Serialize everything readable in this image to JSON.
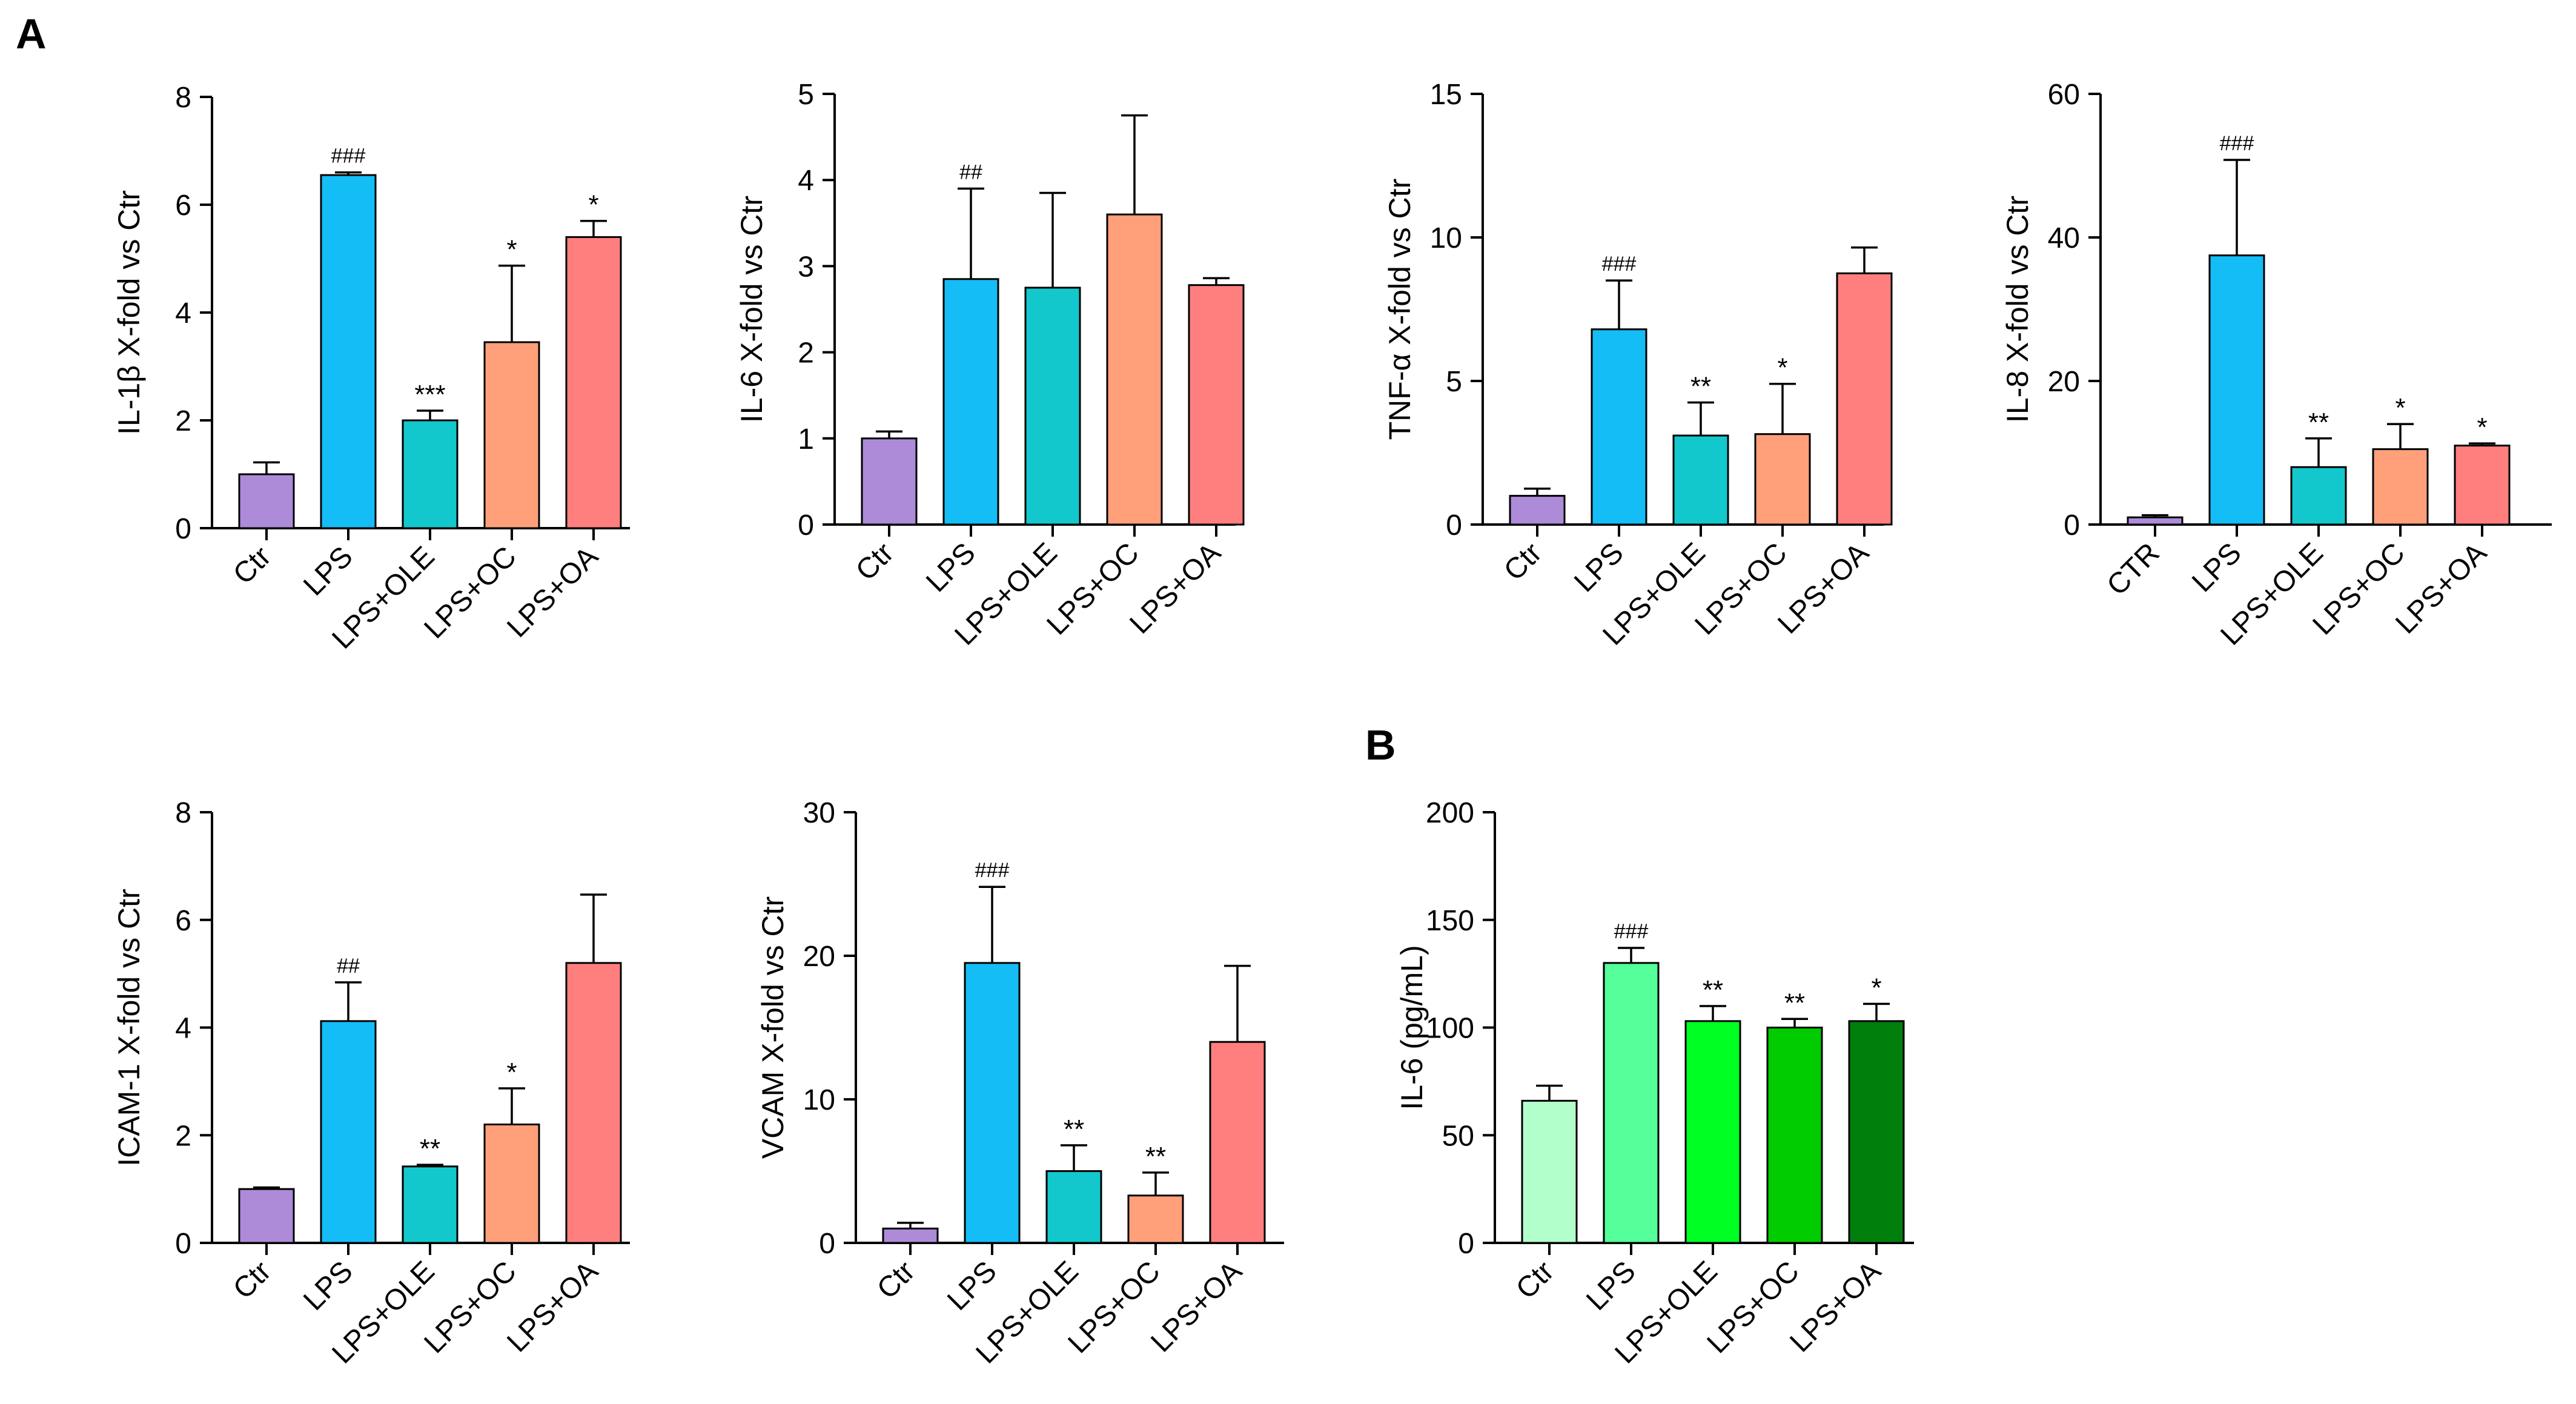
{
  "figure": {
    "panel_a_label": "A",
    "panel_b_label": "B"
  },
  "chart_data": [
    {
      "id": "il1b",
      "type": "bar",
      "ylabel": "IL-1β X-fold vs Ctr",
      "ylim": [
        0,
        8
      ],
      "yticks": [
        0,
        2,
        4,
        6,
        8
      ],
      "categories": [
        "Ctr",
        "LPS",
        "LPS+OLE",
        "LPS+OC",
        "LPS+OA"
      ],
      "values": [
        1.0,
        6.55,
        2.0,
        3.45,
        5.4
      ],
      "errors": [
        0.22,
        0.05,
        0.18,
        1.42,
        0.3
      ],
      "annotations": [
        "",
        "###",
        "***",
        "*",
        "*"
      ],
      "colors": [
        "#ad8bd9",
        "#14bdf5",
        "#12c8cc",
        "#ffa07a",
        "#ff7f7f"
      ]
    },
    {
      "id": "il6",
      "type": "bar",
      "ylabel": "IL-6 X-fold vs Ctr",
      "ylim": [
        0,
        5
      ],
      "yticks": [
        0,
        1,
        2,
        3,
        4,
        5
      ],
      "categories": [
        "Ctr",
        "LPS",
        "LPS+OLE",
        "LPS+OC",
        "LPS+OA"
      ],
      "values": [
        1.0,
        2.85,
        2.75,
        3.6,
        2.78
      ],
      "errors": [
        0.08,
        1.05,
        1.1,
        1.15,
        0.08
      ],
      "annotations": [
        "",
        "##",
        "",
        "",
        ""
      ],
      "colors": [
        "#ad8bd9",
        "#14bdf5",
        "#12c8cc",
        "#ffa07a",
        "#ff7f7f"
      ]
    },
    {
      "id": "tnfa",
      "type": "bar",
      "ylabel": "TNF-α X-fold vs Ctr",
      "ylim": [
        0,
        15
      ],
      "yticks": [
        0,
        5,
        10,
        15
      ],
      "categories": [
        "Ctr",
        "LPS",
        "LPS+OLE",
        "LPS+OC",
        "LPS+OA"
      ],
      "values": [
        1.0,
        6.8,
        3.1,
        3.15,
        8.75
      ],
      "errors": [
        0.25,
        1.7,
        1.15,
        1.75,
        0.9
      ],
      "annotations": [
        "",
        "###",
        "**",
        "*",
        ""
      ],
      "colors": [
        "#ad8bd9",
        "#14bdf5",
        "#12c8cc",
        "#ffa07a",
        "#ff7f7f"
      ]
    },
    {
      "id": "il8",
      "type": "bar",
      "ylabel": "IL-8 X-fold vs Ctr",
      "ylim": [
        0,
        60
      ],
      "yticks": [
        0,
        20,
        40,
        60
      ],
      "categories": [
        "CTR",
        "LPS",
        "LPS+OLE",
        "LPS+OC",
        "LPS+OA"
      ],
      "values": [
        1.0,
        37.5,
        8.0,
        10.5,
        11.0
      ],
      "errors": [
        0.3,
        13.3,
        4.0,
        3.5,
        0.3
      ],
      "annotations": [
        "",
        "###",
        "**",
        "*",
        "*"
      ],
      "colors": [
        "#ad8bd9",
        "#14bdf5",
        "#12c8cc",
        "#ffa07a",
        "#ff7f7f"
      ]
    },
    {
      "id": "icam1",
      "type": "bar",
      "ylabel": "ICAM-1 X-fold vs Ctr",
      "ylim": [
        0,
        8
      ],
      "yticks": [
        0,
        2,
        4,
        6,
        8
      ],
      "categories": [
        "Ctr",
        "LPS",
        "LPS+OLE",
        "LPS+OC",
        "LPS+OA"
      ],
      "values": [
        1.0,
        4.12,
        1.42,
        2.2,
        5.2
      ],
      "errors": [
        0.03,
        0.72,
        0.03,
        0.67,
        1.27
      ],
      "annotations": [
        "",
        "##",
        "**",
        "*",
        ""
      ],
      "colors": [
        "#ad8bd9",
        "#14bdf5",
        "#12c8cc",
        "#ffa07a",
        "#ff7f7f"
      ]
    },
    {
      "id": "vcam",
      "type": "bar",
      "ylabel": "VCAM X-fold vs Ctr",
      "ylim": [
        0,
        30
      ],
      "yticks": [
        0,
        10,
        20,
        30
      ],
      "categories": [
        "Ctr",
        "LPS",
        "LPS+OLE",
        "LPS+OC",
        "LPS+OA"
      ],
      "values": [
        1.0,
        19.5,
        5.0,
        3.3,
        14.0
      ],
      "errors": [
        0.4,
        5.3,
        1.8,
        1.6,
        5.3
      ],
      "annotations": [
        "",
        "###",
        "**",
        "**",
        ""
      ],
      "colors": [
        "#ad8bd9",
        "#14bdf5",
        "#12c8cc",
        "#ffa07a",
        "#ff7f7f"
      ]
    },
    {
      "id": "il6_elisa",
      "type": "bar",
      "ylabel": "IL-6 (pg/mL)",
      "ylim": [
        0,
        200
      ],
      "yticks": [
        0,
        50,
        100,
        150,
        200
      ],
      "categories": [
        "Ctr",
        "LPS",
        "LPS+OLE",
        "LPS+OC",
        "LPS+OA"
      ],
      "values": [
        66,
        130,
        103,
        100,
        103
      ],
      "errors": [
        7,
        7,
        7,
        4,
        8
      ],
      "annotations": [
        "",
        "###",
        "**",
        "**",
        "*"
      ],
      "colors": [
        "#b2ffcc",
        "#55ff99",
        "#00ff22",
        "#00cc00",
        "#007f0d"
      ]
    }
  ]
}
